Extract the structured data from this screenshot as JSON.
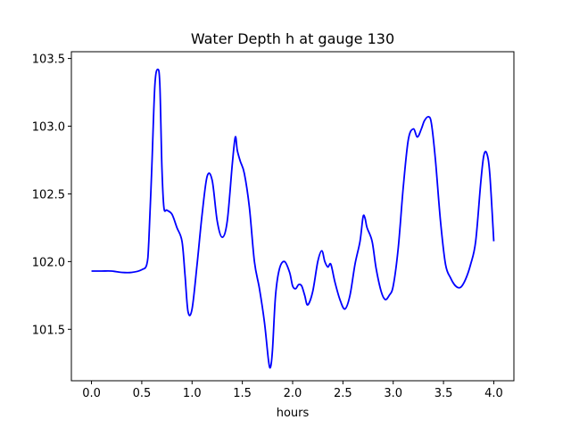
{
  "chart_data": {
    "type": "line",
    "title": "Water Depth h at gauge 130",
    "xlabel": "hours",
    "ylabel": "",
    "xlim": [
      -0.2,
      4.2
    ],
    "ylim": [
      101.12,
      103.55
    ],
    "xticks": [
      0.0,
      0.5,
      1.0,
      1.5,
      2.0,
      2.5,
      3.0,
      3.5,
      4.0
    ],
    "xtick_labels": [
      "0.0",
      "0.5",
      "1.0",
      "1.5",
      "2.0",
      "2.5",
      "3.0",
      "3.5",
      "4.0"
    ],
    "yticks": [
      101.5,
      102.0,
      102.5,
      103.0,
      103.5
    ],
    "ytick_labels": [
      "101.5",
      "102.0",
      "102.5",
      "103.0",
      "103.5"
    ],
    "grid": false,
    "series": [
      {
        "color": "#0000ff",
        "x": [
          0.0,
          0.1,
          0.2,
          0.3,
          0.4,
          0.5,
          0.55,
          0.57,
          0.6,
          0.63,
          0.66,
          0.68,
          0.7,
          0.72,
          0.75,
          0.8,
          0.85,
          0.9,
          0.93,
          0.96,
          1.0,
          1.05,
          1.1,
          1.15,
          1.2,
          1.25,
          1.3,
          1.35,
          1.4,
          1.43,
          1.45,
          1.48,
          1.52,
          1.57,
          1.62,
          1.67,
          1.72,
          1.76,
          1.78,
          1.8,
          1.83,
          1.87,
          1.92,
          1.97,
          2.0,
          2.03,
          2.06,
          2.09,
          2.12,
          2.15,
          2.2,
          2.25,
          2.29,
          2.32,
          2.35,
          2.38,
          2.42,
          2.47,
          2.52,
          2.57,
          2.62,
          2.67,
          2.7,
          2.72,
          2.74,
          2.79,
          2.83,
          2.88,
          2.92,
          2.96,
          3.0,
          3.05,
          3.1,
          3.15,
          3.2,
          3.24,
          3.28,
          3.31,
          3.35,
          3.38,
          3.42,
          3.47,
          3.52,
          3.57,
          3.62,
          3.67,
          3.72,
          3.77,
          3.82,
          3.87,
          3.9,
          3.93,
          3.96,
          4.0
        ],
        "y": [
          101.93,
          101.93,
          101.93,
          101.92,
          101.92,
          101.94,
          101.98,
          102.15,
          102.7,
          103.3,
          103.42,
          103.3,
          102.7,
          102.4,
          102.38,
          102.35,
          102.25,
          102.15,
          101.9,
          101.63,
          101.65,
          101.98,
          102.35,
          102.63,
          102.6,
          102.3,
          102.18,
          102.3,
          102.72,
          102.92,
          102.82,
          102.74,
          102.65,
          102.4,
          102.0,
          101.8,
          101.55,
          101.27,
          101.22,
          101.35,
          101.75,
          101.95,
          102.0,
          101.92,
          101.82,
          101.8,
          101.83,
          101.82,
          101.75,
          101.68,
          101.78,
          102.0,
          102.08,
          102.0,
          101.96,
          101.98,
          101.85,
          101.72,
          101.65,
          101.75,
          101.98,
          102.15,
          102.33,
          102.32,
          102.25,
          102.15,
          101.95,
          101.78,
          101.72,
          101.75,
          101.82,
          102.1,
          102.55,
          102.9,
          102.98,
          102.92,
          102.98,
          103.04,
          103.07,
          103.02,
          102.75,
          102.3,
          101.98,
          101.88,
          101.82,
          101.81,
          101.87,
          101.98,
          102.15,
          102.58,
          102.78,
          102.8,
          102.65,
          102.15
        ]
      }
    ]
  }
}
